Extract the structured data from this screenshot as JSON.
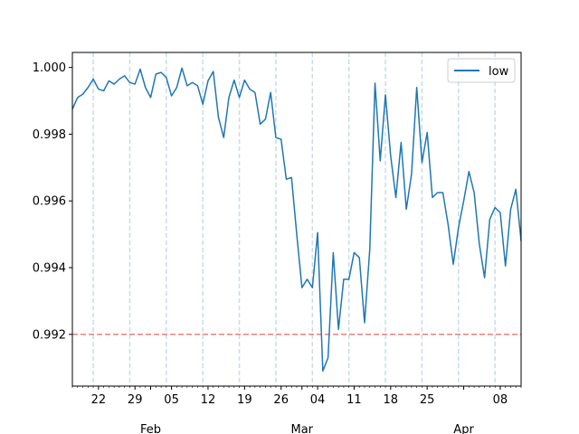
{
  "chart_data": {
    "type": "line",
    "series": [
      {
        "name": "low",
        "color": "#1f77b4",
        "x": [
          "2024-01-17",
          "2024-01-18",
          "2024-01-19",
          "2024-01-20",
          "2024-01-21",
          "2024-01-22",
          "2024-01-23",
          "2024-01-24",
          "2024-01-25",
          "2024-01-26",
          "2024-01-27",
          "2024-01-28",
          "2024-01-29",
          "2024-01-30",
          "2024-01-31",
          "2024-02-01",
          "2024-02-02",
          "2024-02-03",
          "2024-02-04",
          "2024-02-05",
          "2024-02-06",
          "2024-02-07",
          "2024-02-08",
          "2024-02-09",
          "2024-02-10",
          "2024-02-11",
          "2024-02-12",
          "2024-02-13",
          "2024-02-14",
          "2024-02-15",
          "2024-02-16",
          "2024-02-17",
          "2024-02-18",
          "2024-02-19",
          "2024-02-20",
          "2024-02-21",
          "2024-02-22",
          "2024-02-23",
          "2024-02-24",
          "2024-02-25",
          "2024-02-26",
          "2024-02-27",
          "2024-02-28",
          "2024-02-29",
          "2024-03-01",
          "2024-03-02",
          "2024-03-03",
          "2024-03-04",
          "2024-03-05",
          "2024-03-06",
          "2024-03-07",
          "2024-03-08",
          "2024-03-09",
          "2024-03-10",
          "2024-03-11",
          "2024-03-12",
          "2024-03-13",
          "2024-03-14",
          "2024-03-15",
          "2024-03-16",
          "2024-03-17",
          "2024-03-18",
          "2024-03-19",
          "2024-03-20",
          "2024-03-21",
          "2024-03-22",
          "2024-03-23",
          "2024-03-24",
          "2024-03-25",
          "2024-03-26",
          "2024-03-27",
          "2024-03-28",
          "2024-03-29",
          "2024-03-30",
          "2024-03-31",
          "2024-04-01",
          "2024-04-02",
          "2024-04-03",
          "2024-04-04",
          "2024-04-05",
          "2024-04-06",
          "2024-04-07",
          "2024-04-08",
          "2024-04-09",
          "2024-04-10",
          "2024-04-11",
          "2024-04-12"
        ],
        "values": [
          0.99875,
          0.9991,
          0.9992,
          0.9994,
          0.99965,
          0.99935,
          0.9993,
          0.9996,
          0.9995,
          0.99965,
          0.99975,
          0.99955,
          0.9995,
          0.99995,
          0.9994,
          0.9991,
          0.9998,
          0.99985,
          0.9997,
          0.99915,
          0.9994,
          0.99998,
          0.99945,
          0.99955,
          0.99945,
          0.9989,
          0.9996,
          0.99988,
          0.9985,
          0.9979,
          0.9991,
          0.99962,
          0.9991,
          0.99962,
          0.99935,
          0.99925,
          0.9983,
          0.99845,
          0.99925,
          0.9979,
          0.99785,
          0.99665,
          0.9967,
          0.995,
          0.9934,
          0.99365,
          0.9934,
          0.99505,
          0.9909,
          0.9913,
          0.99445,
          0.99215,
          0.99365,
          0.99365,
          0.99445,
          0.9943,
          0.99235,
          0.99455,
          0.99953,
          0.9972,
          0.99918,
          0.99735,
          0.9961,
          0.99775,
          0.99575,
          0.9968,
          0.9994,
          0.99715,
          0.99805,
          0.9961,
          0.99625,
          0.99625,
          0.9953,
          0.9941,
          0.9952,
          0.996,
          0.99688,
          0.99625,
          0.9947,
          0.9937,
          0.99545,
          0.9958,
          0.99565,
          0.99405,
          0.99575,
          0.99635,
          0.9948
        ]
      }
    ],
    "ylim": [
      0.99045,
      1.00045
    ],
    "yticks": [
      "0.992",
      "0.994",
      "0.996",
      "0.998",
      "1.000"
    ],
    "ytick_values": [
      0.992,
      0.994,
      0.996,
      0.998,
      1.0
    ],
    "xrange": [
      "2024-01-17",
      "2024-04-12"
    ],
    "xticks_minor": [
      {
        "label": "22",
        "date": "2024-01-22"
      },
      {
        "label": "29",
        "date": "2024-01-29"
      },
      {
        "label": "05",
        "date": "2024-02-05"
      },
      {
        "label": "12",
        "date": "2024-02-12"
      },
      {
        "label": "19",
        "date": "2024-02-19"
      },
      {
        "label": "26",
        "date": "2024-02-26"
      },
      {
        "label": "04",
        "date": "2024-03-04"
      },
      {
        "label": "11",
        "date": "2024-03-11"
      },
      {
        "label": "18",
        "date": "2024-03-18"
      },
      {
        "label": "25",
        "date": "2024-03-25"
      },
      {
        "label": "08",
        "date": "2024-04-08"
      }
    ],
    "xticks_major": [
      {
        "label": "Feb",
        "date": "2024-02-01"
      },
      {
        "label": "Mar",
        "date": "2024-03-01"
      },
      {
        "label": "Apr",
        "date": "2024-04-01"
      }
    ],
    "vlines": [
      "2024-01-21",
      "2024-01-28",
      "2024-02-04",
      "2024-02-11",
      "2024-02-18",
      "2024-02-25",
      "2024-03-03",
      "2024-03-10",
      "2024-03-17",
      "2024-03-24",
      "2024-03-31",
      "2024-04-07"
    ],
    "vline_color": "#c6dcec",
    "hline": {
      "value": 0.992,
      "color": "#f08080"
    },
    "legend": {
      "position": "top-right",
      "entries": [
        "low"
      ]
    },
    "grid": false
  }
}
